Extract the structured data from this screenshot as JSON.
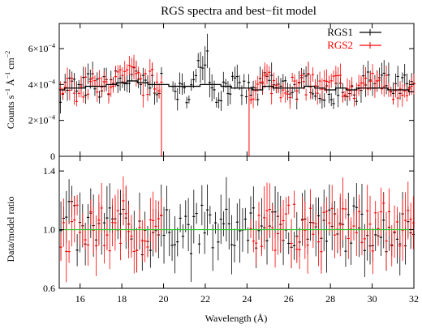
{
  "chart_data": [
    {
      "type": "scatter",
      "title": "RGS spectra and best−fit model",
      "ylabel_parts": [
        "Counts s",
        "−1",
        " Å",
        "−1",
        " cm",
        "−2"
      ],
      "xlim": [
        15,
        32
      ],
      "ylim": [
        0,
        0.00074
      ],
      "x_ticks": [
        16,
        18,
        20,
        22,
        24,
        26,
        28,
        30,
        32
      ],
      "y_ticks": [
        {
          "value": 0,
          "mantissa": "0",
          "exp": ""
        },
        {
          "value": 0.0002,
          "mantissa": "2×10",
          "exp": "−4"
        },
        {
          "value": 0.0004,
          "mantissa": "4×10",
          "exp": "−4"
        },
        {
          "value": 0.0006,
          "mantissa": "6×10",
          "exp": "−4"
        }
      ],
      "legend_position": "top-right",
      "series": [
        {
          "name": "RGS1",
          "color": "#000000",
          "style": "points-with-errorbars",
          "x": [
            15.0,
            15.5,
            16.0,
            16.5,
            17.0,
            17.5,
            18.0,
            18.5,
            19.0,
            19.5,
            20.5,
            21.0,
            21.5,
            22.0,
            22.5,
            23.0,
            23.5,
            24.5,
            25.0,
            25.5,
            26.0,
            26.5,
            27.0,
            27.5,
            28.0,
            28.5,
            29.0,
            29.5,
            30.0,
            30.5,
            31.0,
            31.5,
            32.0
          ],
          "y": [
            0.00036,
            0.0004,
            0.00037,
            0.00041,
            0.00037,
            0.00042,
            0.00041,
            0.00044,
            0.00039,
            0.00041,
            0.00037,
            0.00035,
            0.0004,
            0.00062,
            0.00032,
            0.00041,
            0.00038,
            0.00035,
            0.00043,
            0.00038,
            0.00039,
            0.00037,
            0.00043,
            0.00036,
            0.00032,
            0.00041,
            0.00033,
            0.00041,
            0.0004,
            0.00042,
            0.00037,
            0.0004,
            0.00036
          ]
        },
        {
          "name": "RGS2",
          "color": "#ff0000",
          "style": "points-with-errorbars",
          "x": [
            15.0,
            15.5,
            16.0,
            16.5,
            17.0,
            17.5,
            18.0,
            18.5,
            19.0,
            19.5,
            24.5,
            25.0,
            25.5,
            26.0,
            26.5,
            27.0,
            27.5,
            28.0,
            28.5,
            29.0,
            29.5,
            30.0,
            30.5,
            31.0,
            31.5,
            32.0
          ],
          "y": [
            0.00035,
            0.00039,
            0.00036,
            0.0004,
            0.00037,
            0.00043,
            0.00042,
            0.00045,
            0.00039,
            0.00042,
            0.00037,
            0.00043,
            0.00038,
            0.0004,
            0.00037,
            0.00043,
            0.00037,
            0.00039,
            0.00041,
            0.00034,
            0.00041,
            0.0004,
            0.00042,
            0.00036,
            0.0004,
            0.00037
          ]
        },
        {
          "name": "best-fit model",
          "color": "#000000",
          "style": "line",
          "x": [
            15.0,
            15.5,
            16.0,
            16.5,
            17.0,
            17.5,
            18.0,
            18.5,
            19.0,
            19.5,
            20.0,
            20.5,
            21.0,
            21.5,
            22.0,
            22.5,
            23.0,
            23.5,
            24.0,
            24.5,
            25.0,
            25.5,
            26.0,
            26.5,
            27.0,
            27.5,
            28.0,
            28.5,
            29.0,
            29.5,
            30.0,
            30.5,
            31.0,
            31.5,
            32.0
          ],
          "y": [
            0.00037,
            0.00038,
            0.00038,
            0.00039,
            0.00039,
            0.0004,
            0.00041,
            0.00042,
            0.00041,
            0.0004,
            0.0004,
            0.00039,
            0.00039,
            0.00039,
            0.0004,
            0.0004,
            0.00039,
            0.00038,
            0.00038,
            0.00037,
            0.00039,
            0.00038,
            0.00038,
            0.00038,
            0.00039,
            0.00038,
            0.00037,
            0.00038,
            0.00037,
            0.00038,
            0.00038,
            0.00038,
            0.00037,
            0.00037,
            0.00036
          ]
        }
      ],
      "rgs2_gap": {
        "x": [
          19.9,
          24.1
        ],
        "y_floor": 0
      }
    },
    {
      "type": "scatter",
      "ylabel": "Data/model ratio",
      "xlabel": "Wavelength (Å)",
      "xlim": [
        15,
        32
      ],
      "ylim": [
        0.6,
        1.5
      ],
      "x_ticks": [
        16,
        18,
        20,
        22,
        24,
        26,
        28,
        30,
        32
      ],
      "y_ticks": [
        0.6,
        1.0,
        1.4
      ],
      "reference_line": {
        "y": 1.0,
        "color": "#22cc22"
      },
      "series": [
        {
          "name": "RGS1",
          "color": "#000000",
          "x": [
            15.0,
            15.5,
            16.0,
            16.5,
            17.0,
            17.5,
            18.0,
            18.5,
            19.0,
            19.5,
            20.0,
            20.5,
            21.0,
            21.5,
            22.0,
            22.5,
            23.0,
            23.5,
            24.0,
            24.5,
            25.0,
            25.5,
            26.0,
            26.5,
            27.0,
            27.5,
            28.0,
            28.5,
            29.0,
            29.5,
            30.0,
            30.5,
            31.0,
            31.5,
            32.0
          ],
          "y": [
            0.98,
            1.08,
            0.94,
            1.02,
            0.96,
            1.06,
            0.99,
            1.03,
            0.95,
            1.0,
            0.97,
            1.04,
            1.02,
            0.96,
            1.05,
            0.97,
            1.01,
            0.99,
            1.03,
            0.98,
            1.06,
            0.97,
            1.02,
            0.99,
            1.04,
            0.98,
            1.01,
            0.96,
            1.05,
            0.98,
            1.02,
            0.97,
            1.01,
            0.99,
            1.0
          ]
        },
        {
          "name": "RGS2",
          "color": "#ff0000",
          "x": [
            15.0,
            15.5,
            16.0,
            16.5,
            17.0,
            17.5,
            18.0,
            18.5,
            19.0,
            19.5,
            24.5,
            25.0,
            25.5,
            26.0,
            26.5,
            27.0,
            27.5,
            28.0,
            28.5,
            29.0,
            29.5,
            30.0,
            30.5,
            31.0,
            31.5,
            32.0
          ],
          "y": [
            1.04,
            0.97,
            1.06,
            0.98,
            1.02,
            0.95,
            1.07,
            0.99,
            1.03,
            0.97,
            1.05,
            1.01,
            0.98,
            1.06,
            1.0,
            1.04,
            0.97,
            1.02,
            1.06,
            0.99,
            1.03,
            0.98,
            1.05,
            1.0,
            1.02,
            0.99
          ]
        }
      ]
    }
  ]
}
